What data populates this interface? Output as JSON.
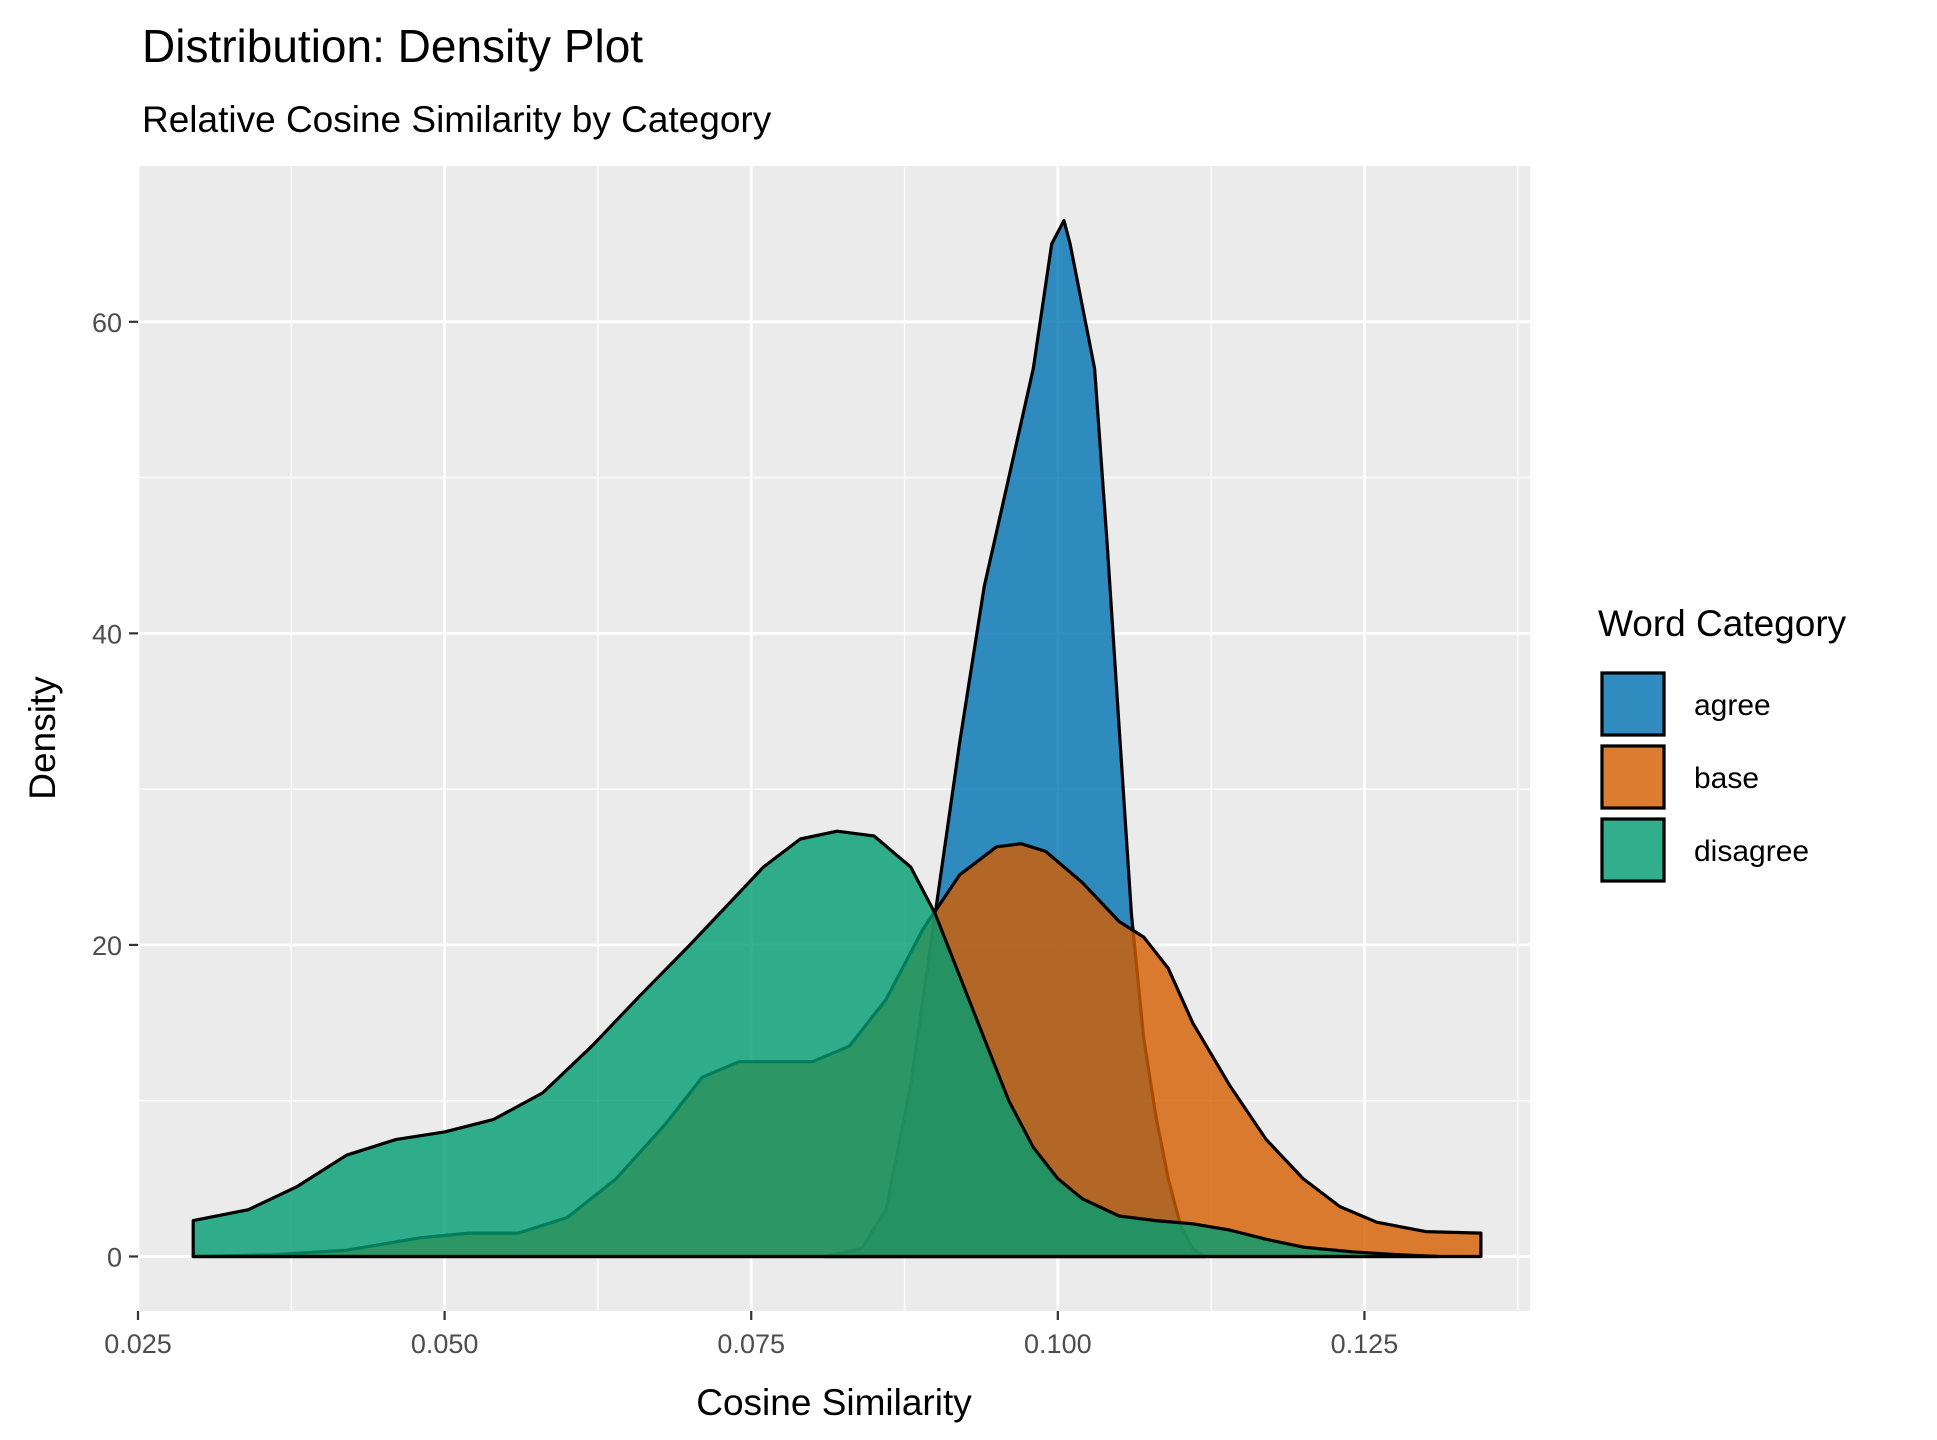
{
  "chart_data": {
    "type": "area",
    "title": "Distribution: Density Plot",
    "subtitle": "Relative Cosine Similarity by Category",
    "xlabel": "Cosine Similarity",
    "ylabel": "Density",
    "xlim": [
      0.025,
      0.1385
    ],
    "ylim": [
      -3.5,
      70
    ],
    "x_ticks": [
      0.025,
      0.05,
      0.075,
      0.1,
      0.125
    ],
    "x_tick_labels": [
      "0.025",
      "0.050",
      "0.075",
      "0.100",
      "0.125"
    ],
    "y_ticks": [
      0,
      20,
      40,
      60
    ],
    "y_tick_labels": [
      "0",
      "20",
      "40",
      "60"
    ],
    "grid": true,
    "legend": {
      "title": "Word Category",
      "position": "right"
    },
    "series": [
      {
        "name": "agree",
        "color": "#0072B2",
        "points": [
          [
            0.081,
            0
          ],
          [
            0.084,
            0.5
          ],
          [
            0.086,
            3
          ],
          [
            0.088,
            11
          ],
          [
            0.09,
            22
          ],
          [
            0.092,
            33
          ],
          [
            0.094,
            43
          ],
          [
            0.096,
            50
          ],
          [
            0.098,
            57
          ],
          [
            0.0995,
            65
          ],
          [
            0.1005,
            66.5
          ],
          [
            0.101,
            65
          ],
          [
            0.103,
            57
          ],
          [
            0.104,
            46
          ],
          [
            0.105,
            34
          ],
          [
            0.106,
            22
          ],
          [
            0.107,
            14
          ],
          [
            0.108,
            9
          ],
          [
            0.109,
            5
          ],
          [
            0.11,
            2
          ],
          [
            0.111,
            0.5
          ],
          [
            0.112,
            0
          ]
        ]
      },
      {
        "name": "base",
        "color": "#D55E00",
        "points": [
          [
            0.0295,
            0
          ],
          [
            0.036,
            0.1
          ],
          [
            0.042,
            0.4
          ],
          [
            0.048,
            1.2
          ],
          [
            0.052,
            1.5
          ],
          [
            0.056,
            1.5
          ],
          [
            0.06,
            2.5
          ],
          [
            0.064,
            5
          ],
          [
            0.068,
            8.5
          ],
          [
            0.071,
            11.5
          ],
          [
            0.074,
            12.5
          ],
          [
            0.077,
            12.5
          ],
          [
            0.08,
            12.5
          ],
          [
            0.083,
            13.5
          ],
          [
            0.086,
            16.5
          ],
          [
            0.089,
            21
          ],
          [
            0.092,
            24.5
          ],
          [
            0.095,
            26.3
          ],
          [
            0.097,
            26.5
          ],
          [
            0.099,
            26
          ],
          [
            0.102,
            24
          ],
          [
            0.105,
            21.5
          ],
          [
            0.107,
            20.5
          ],
          [
            0.109,
            18.5
          ],
          [
            0.111,
            15
          ],
          [
            0.114,
            11
          ],
          [
            0.117,
            7.5
          ],
          [
            0.12,
            5
          ],
          [
            0.123,
            3.2
          ],
          [
            0.126,
            2.2
          ],
          [
            0.13,
            1.6
          ],
          [
            0.1345,
            1.5
          ],
          [
            0.1345,
            0
          ]
        ]
      },
      {
        "name": "disagree",
        "color": "#009E73",
        "points": [
          [
            0.0295,
            0
          ],
          [
            0.0295,
            2.3
          ],
          [
            0.034,
            3
          ],
          [
            0.038,
            4.5
          ],
          [
            0.042,
            6.5
          ],
          [
            0.046,
            7.5
          ],
          [
            0.05,
            8
          ],
          [
            0.054,
            8.8
          ],
          [
            0.058,
            10.5
          ],
          [
            0.062,
            13.5
          ],
          [
            0.066,
            16.8
          ],
          [
            0.07,
            20
          ],
          [
            0.073,
            22.5
          ],
          [
            0.076,
            25
          ],
          [
            0.079,
            26.8
          ],
          [
            0.082,
            27.3
          ],
          [
            0.085,
            27
          ],
          [
            0.088,
            25
          ],
          [
            0.09,
            22
          ],
          [
            0.092,
            18
          ],
          [
            0.094,
            14
          ],
          [
            0.096,
            10
          ],
          [
            0.098,
            7
          ],
          [
            0.1,
            5
          ],
          [
            0.102,
            3.7
          ],
          [
            0.105,
            2.6
          ],
          [
            0.108,
            2.3
          ],
          [
            0.111,
            2.1
          ],
          [
            0.114,
            1.7
          ],
          [
            0.117,
            1.1
          ],
          [
            0.12,
            0.6
          ],
          [
            0.124,
            0.3
          ],
          [
            0.128,
            0.1
          ],
          [
            0.131,
            0
          ]
        ]
      }
    ]
  }
}
